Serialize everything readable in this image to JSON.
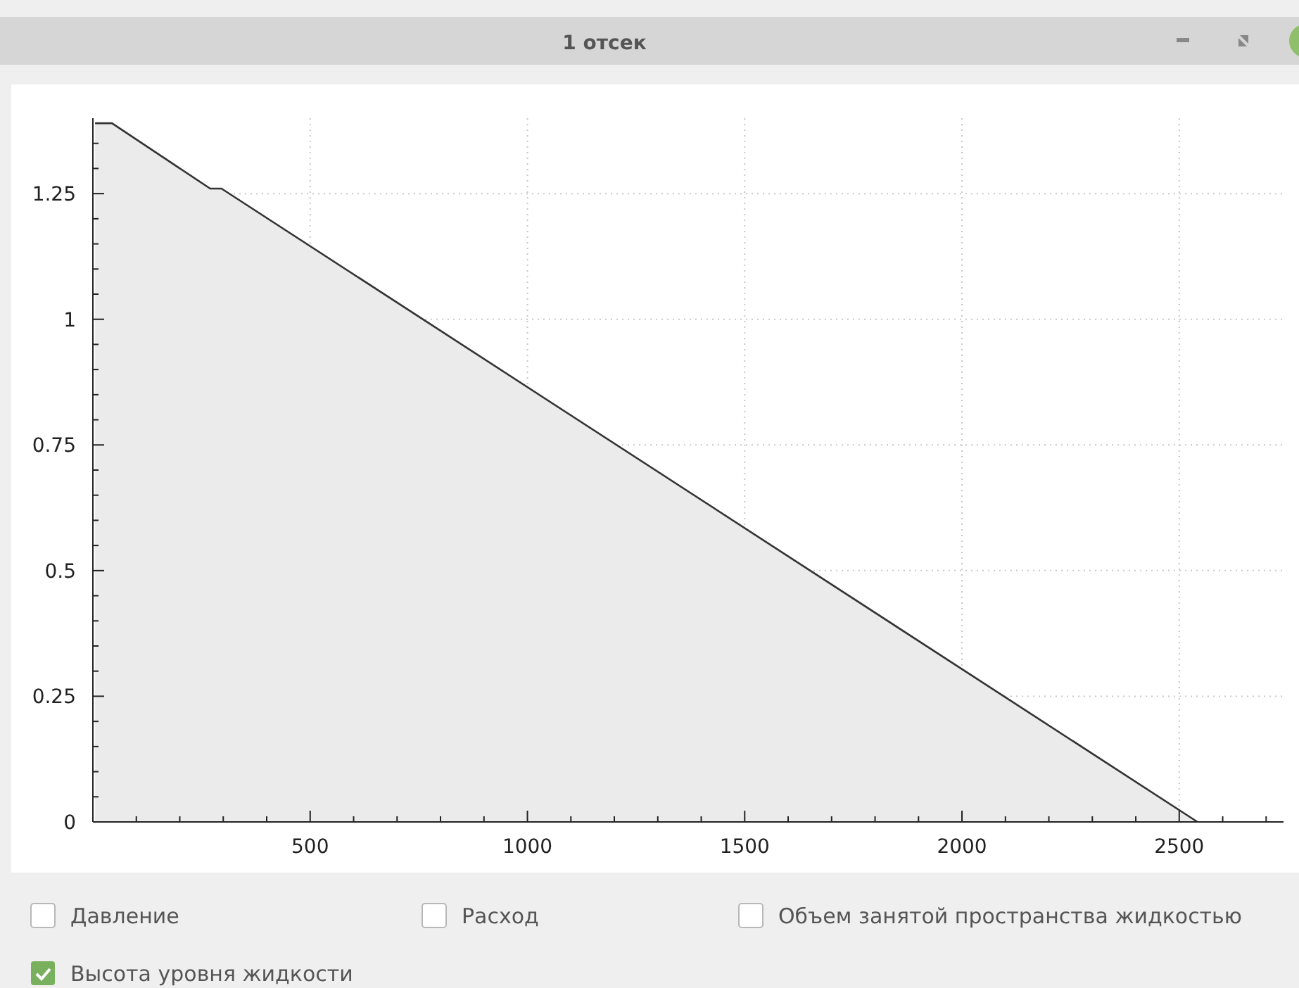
{
  "chart_data": {
    "type": "area",
    "title": "1 отсек",
    "x": [
      5,
      44,
      270,
      296,
      2542
    ],
    "series": [
      {
        "name": "Высота уровня жидкости",
        "color": "#333333",
        "values": [
          1.39,
          1.39,
          1.26,
          1.26,
          0
        ]
      }
    ],
    "xlim": [
      0,
      2740
    ],
    "ylim": [
      0,
      1.4
    ],
    "xticks": [
      {
        "value": 100,
        "label": null
      },
      {
        "value": 200,
        "label": null
      },
      {
        "value": 300,
        "label": null
      },
      {
        "value": 400,
        "label": null
      },
      500,
      {
        "value": 600,
        "label": null
      },
      {
        "value": 700,
        "label": null
      },
      {
        "value": 800,
        "label": null
      },
      {
        "value": 900,
        "label": null
      },
      1000,
      {
        "value": 1100,
        "label": null
      },
      {
        "value": 1200,
        "label": null
      },
      {
        "value": 1300,
        "label": null
      },
      {
        "value": 1400,
        "label": null
      },
      1500,
      {
        "value": 1600,
        "label": null
      },
      {
        "value": 1700,
        "label": null
      },
      {
        "value": 1800,
        "label": null
      },
      {
        "value": 1900,
        "label": null
      },
      2000,
      {
        "value": 2100,
        "label": null
      },
      {
        "value": 2200,
        "label": null
      },
      {
        "value": 2300,
        "label": null
      },
      {
        "value": 2400,
        "label": null
      },
      2500,
      {
        "value": 2600,
        "label": null
      },
      {
        "value": 2700,
        "label": null
      }
    ],
    "yticks": [
      0,
      {
        "value": 0.05,
        "label": null
      },
      {
        "value": 0.1,
        "label": null
      },
      {
        "value": 0.15,
        "label": null
      },
      {
        "value": 0.2,
        "label": null
      },
      0.25,
      {
        "value": 0.3,
        "label": null
      },
      {
        "value": 0.35,
        "label": null
      },
      {
        "value": 0.4,
        "label": null
      },
      {
        "value": 0.45,
        "label": null
      },
      0.5,
      {
        "value": 0.55,
        "label": null
      },
      {
        "value": 0.6,
        "label": null
      },
      {
        "value": 0.65,
        "label": null
      },
      {
        "value": 0.7,
        "label": null
      },
      0.75,
      {
        "value": 0.8,
        "label": null
      },
      {
        "value": 0.85,
        "label": null
      },
      {
        "value": 0.9,
        "label": null
      },
      {
        "value": 0.95,
        "label": null
      },
      1,
      {
        "value": 1.05,
        "label": null
      },
      {
        "value": 1.1,
        "label": null
      },
      {
        "value": 1.15,
        "label": null
      },
      {
        "value": 1.2,
        "label": null
      },
      1.25,
      {
        "value": 1.3,
        "label": null
      },
      {
        "value": 1.35,
        "label": null
      }
    ],
    "grid": true,
    "legend": "bottom",
    "annotations": [
      "Давление",
      "Расход",
      "Объем занятой пространства жидкостью"
    ]
  }
}
